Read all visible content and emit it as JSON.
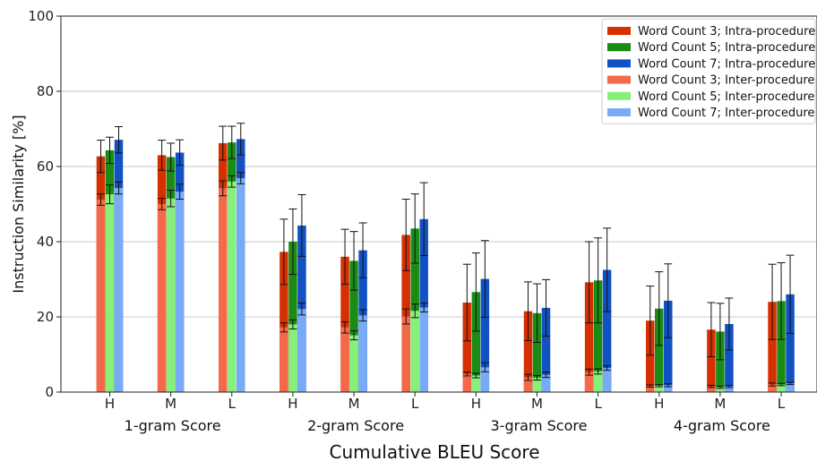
{
  "chart_data": {
    "type": "bar",
    "xlabel": "Cumulative BLEU Score",
    "ylabel": "Instruction Similarity [%]",
    "ylim": [
      0,
      100
    ],
    "yticks": [
      0,
      20,
      40,
      60,
      80,
      100
    ],
    "grid": "horizontal",
    "legend_position": "top-right",
    "groups": [
      "1-gram Score",
      "2-gram Score",
      "3-gram Score",
      "4-gram Score"
    ],
    "levels": [
      "H",
      "M",
      "L"
    ],
    "series": [
      {
        "name": "Word Count 3; Intra-procedure",
        "color": "#d62f00",
        "values": [
          62.7,
          63.0,
          66.2,
          37.3,
          36.0,
          41.8,
          23.8,
          21.5,
          29.2,
          19.0,
          16.6,
          24.0
        ],
        "errors": [
          4.3,
          4.0,
          4.5,
          8.7,
          7.3,
          9.5,
          10.2,
          7.8,
          10.8,
          9.2,
          7.2,
          10.0
        ]
      },
      {
        "name": "Word Count 5; Intra-procedure",
        "color": "#1a8c16",
        "values": [
          64.3,
          62.5,
          66.4,
          40.0,
          34.9,
          43.5,
          26.6,
          21.0,
          29.7,
          22.2,
          16.1,
          24.2
        ],
        "errors": [
          3.5,
          3.7,
          4.3,
          8.7,
          7.8,
          9.2,
          10.4,
          7.8,
          11.3,
          9.8,
          7.5,
          10.2
        ]
      },
      {
        "name": "Word Count 7; Intra-procedure",
        "color": "#1251c4",
        "values": [
          67.1,
          63.7,
          67.3,
          44.3,
          37.7,
          46.0,
          30.1,
          22.4,
          32.5,
          24.3,
          18.1,
          26.0
        ],
        "errors": [
          3.5,
          3.4,
          4.2,
          8.2,
          7.3,
          9.7,
          10.2,
          7.5,
          11.1,
          9.8,
          6.9,
          10.4
        ]
      },
      {
        "name": "Word Count 3; Inter-procedure",
        "color": "#f4694a",
        "values": [
          51.2,
          50.0,
          54.2,
          17.2,
          17.2,
          20.1,
          4.8,
          3.9,
          5.3,
          1.6,
          1.5,
          2.0
        ],
        "errors": [
          1.5,
          1.5,
          2.0,
          1.2,
          1.5,
          2.0,
          0.5,
          0.8,
          0.8,
          0.3,
          0.3,
          0.4
        ]
      },
      {
        "name": "Word Count 5; Inter-procedure",
        "color": "#86f07a",
        "values": [
          52.6,
          51.5,
          56.0,
          18.0,
          15.1,
          21.6,
          4.4,
          3.8,
          5.5,
          1.7,
          1.3,
          2.0
        ],
        "errors": [
          2.5,
          2.2,
          1.5,
          1.2,
          1.2,
          1.8,
          0.6,
          0.6,
          0.7,
          0.3,
          0.3,
          0.3
        ]
      },
      {
        "name": "Word Count 7; Inter-procedure",
        "color": "#79aaf7",
        "values": [
          54.3,
          53.3,
          56.9,
          22.1,
          20.4,
          22.5,
          6.6,
          4.6,
          6.4,
          1.8,
          1.5,
          2.3
        ],
        "errors": [
          1.6,
          2.0,
          1.5,
          1.6,
          1.5,
          1.2,
          1.2,
          0.7,
          0.6,
          0.4,
          0.3,
          0.3
        ]
      }
    ]
  }
}
